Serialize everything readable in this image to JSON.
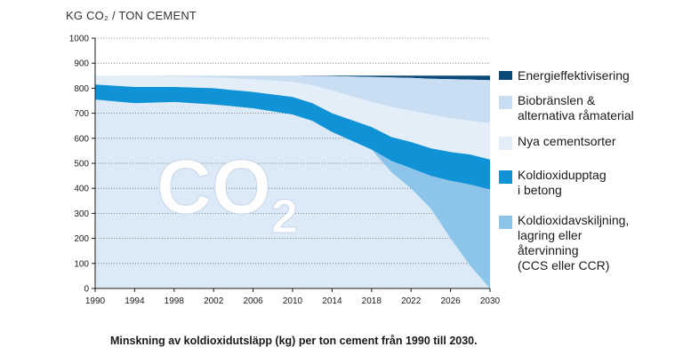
{
  "chart_data": {
    "type": "area",
    "ylabel": "KG CO₂ / TON CEMENT",
    "watermark": "CO₂",
    "caption": "Minskning av koldioxidutsläpp (kg) per ton cement från 1990 till 2030.",
    "ylim": [
      0,
      1000
    ],
    "yticks": [
      0,
      100,
      200,
      300,
      400,
      500,
      600,
      700,
      800,
      900,
      1000
    ],
    "xlim": [
      1990,
      2030
    ],
    "xticks": [
      1990,
      1994,
      1998,
      2002,
      2006,
      2010,
      2014,
      2018,
      2022,
      2026,
      2030
    ],
    "grid": true,
    "legend_position": "right",
    "x": [
      1990,
      1994,
      1998,
      2002,
      2006,
      2010,
      2012,
      2014,
      2018,
      2020,
      2022,
      2024,
      2026,
      2028,
      2030
    ],
    "base_line": [
      850,
      850,
      850,
      850,
      850,
      850,
      850,
      850,
      850,
      850,
      850,
      850,
      850,
      850,
      850
    ],
    "boundaries": {
      "energy_bottom": [
        850,
        850,
        850,
        850,
        850,
        850,
        849,
        848,
        845,
        843,
        841,
        838,
        836,
        834,
        832
      ],
      "bio_bottom": [
        850,
        849,
        847,
        843,
        835,
        825,
        812,
        790,
        745,
        725,
        710,
        695,
        680,
        670,
        660
      ],
      "cement_bottom": [
        815,
        805,
        805,
        800,
        785,
        765,
        740,
        700,
        645,
        605,
        585,
        560,
        545,
        535,
        515
      ],
      "koldioxid_bottom": [
        755,
        740,
        745,
        735,
        720,
        695,
        670,
        625,
        555,
        510,
        480,
        450,
        430,
        415,
        395
      ],
      "ccs_bottom": [
        755,
        740,
        745,
        735,
        720,
        695,
        670,
        625,
        555,
        465,
        400,
        320,
        200,
        90,
        0
      ]
    },
    "series": [
      {
        "name": "Energieffektivisering",
        "color": "#0a4a7a"
      },
      {
        "name": "Biobränslen &\nalternativa råmaterial",
        "color": "#c9def2"
      },
      {
        "name": "Nya cementsorter",
        "color": "#e4eef8"
      },
      {
        "name": "Koldioxidupptag\ni betong",
        "color": "#0f93d6"
      },
      {
        "name": "Koldioxidavskiljning,\nlagring eller\nåtervinning\n(CCS eller CCR)",
        "color": "#8cc4ea"
      }
    ],
    "remaining_color": "#dce9f6"
  }
}
